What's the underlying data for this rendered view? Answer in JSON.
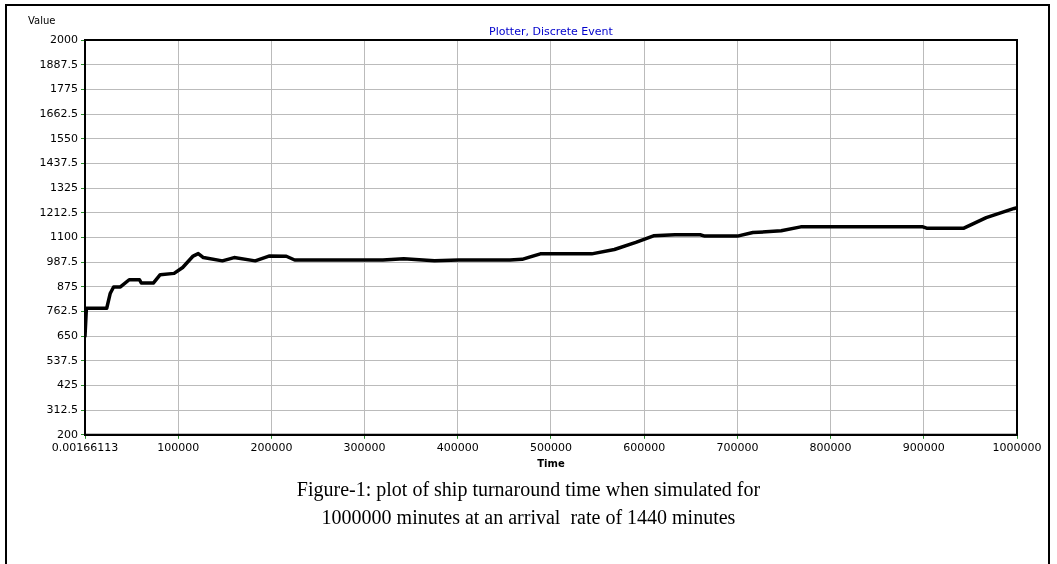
{
  "chart_data": {
    "type": "line",
    "title": "Plotter, Discrete Event",
    "xlabel": "Time",
    "ylabel": "Value",
    "annotations": [
      "Figure-1: plot of ship turnaround time when simulated for\n1000000 minutes at an arrival  rate of 1440 minutes"
    ],
    "x": [
      0.00166113,
      1000,
      1500,
      23300,
      27000,
      30700,
      38000,
      47400,
      58500,
      60400,
      73300,
      80700,
      95600,
      104800,
      116000,
      121500,
      127000,
      147400,
      160000,
      182600,
      197400,
      216000,
      225000,
      319600,
      342000,
      375000,
      401000,
      456000,
      469000,
      488600,
      543700,
      568000,
      591000,
      610000,
      633000,
      660000,
      665000,
      700000,
      716600,
      747000,
      768000,
      899000,
      903000,
      943000,
      967000,
      997000,
      1000000
    ],
    "series": [
      {
        "color": "#000000",
        "values": [
          650,
          650,
          777,
          777,
          844,
          874,
          874,
          907,
          907,
          892,
          892,
          930,
          936,
          963,
          1015,
          1026,
          1008,
          993,
          1008,
          993,
          1015,
          1014,
          997,
          997,
          1003,
          993,
          997,
          997,
          1000,
          1025,
          1025,
          1045,
          1077,
          1107,
          1112,
          1112,
          1106,
          1106,
          1122,
          1130,
          1148,
          1148,
          1142,
          1142,
          1190,
          1232,
          1235
        ]
      }
    ],
    "xlim": [
      0.00166113,
      1000000
    ],
    "xticks": [
      0.00166113,
      100000,
      200000,
      300000,
      400000,
      500000,
      600000,
      700000,
      800000,
      900000,
      1000000
    ],
    "ylim": [
      200,
      2000
    ],
    "yticks": [
      200,
      312.5,
      425,
      537.5,
      650,
      762.5,
      875,
      987.5,
      1100,
      1212.5,
      1325,
      1437.5,
      1550,
      1662.5,
      1775,
      1887.5,
      2000
    ],
    "grid": true,
    "legend": false,
    "marker": "none",
    "line_style": "solid"
  }
}
